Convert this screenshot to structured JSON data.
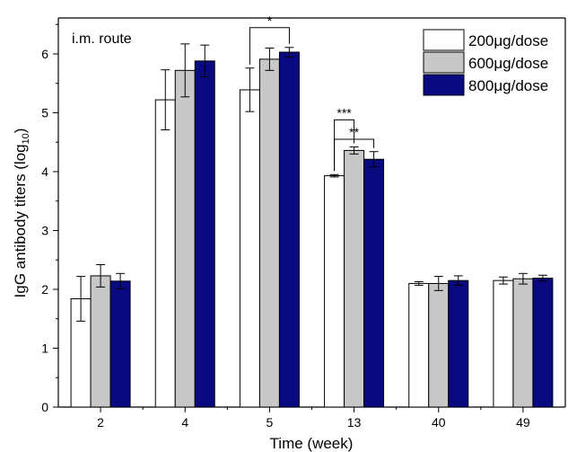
{
  "chart_data": {
    "type": "bar",
    "title": "",
    "annotation": "i.m. route",
    "xlabel": "Time (week)",
    "ylabel_main": "IgG antibody titers (log",
    "ylabel_sub": "10",
    "ylabel_close": ")",
    "ylim": [
      0,
      6.5
    ],
    "yticks": [
      "0",
      "1",
      "2",
      "3",
      "4",
      "5",
      "6"
    ],
    "categories": [
      "2",
      "4",
      "5",
      "13",
      "40",
      "49"
    ],
    "legend_position": "top-right",
    "series": [
      {
        "name": "200μg/dose",
        "color": "#ffffff",
        "values": [
          1.84,
          5.22,
          5.39,
          3.93,
          2.1,
          2.15
        ],
        "errors": [
          0.38,
          0.51,
          0.37,
          0.02,
          0.03,
          0.06
        ]
      },
      {
        "name": "600μg/dose",
        "color": "#c8c8c8",
        "values": [
          2.23,
          5.72,
          5.91,
          4.36,
          2.1,
          2.18
        ],
        "errors": [
          0.19,
          0.45,
          0.19,
          0.06,
          0.12,
          0.09
        ]
      },
      {
        "name": "800μg/dose",
        "color": "#0a0a80",
        "values": [
          2.14,
          5.88,
          6.03,
          4.21,
          2.15,
          2.19
        ],
        "errors": [
          0.13,
          0.27,
          0.08,
          0.13,
          0.08,
          0.05
        ]
      }
    ],
    "significance": [
      {
        "label": "*",
        "category_index": 2,
        "from_series": 0,
        "to_series": 2
      },
      {
        "label": "***",
        "category_index": 3,
        "from_series": 0,
        "to_series": 1
      },
      {
        "label": "**",
        "category_index": 3,
        "from_series": 0,
        "to_series": 2
      }
    ]
  }
}
